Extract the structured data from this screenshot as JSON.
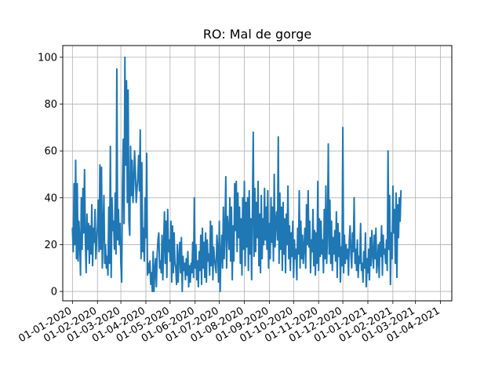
{
  "chart_data": {
    "type": "line",
    "title": "RO: Mal de gorge",
    "xlabel": "",
    "ylabel": "",
    "ylim": [
      -4,
      105
    ],
    "yticks": [
      0,
      20,
      40,
      60,
      80,
      100
    ],
    "xlim": [
      "2019-12-20",
      "2021-04-15"
    ],
    "xticks": [
      "2020-01-01",
      "2020-02-01",
      "2020-03-01",
      "2020-04-01",
      "2020-05-01",
      "2020-06-01",
      "2020-07-01",
      "2020-08-01",
      "2020-09-01",
      "2020-10-01",
      "2020-11-01",
      "2020-12-01",
      "2021-01-01",
      "2021-02-01",
      "2021-03-01",
      "2021-04-01"
    ],
    "xtick_labels": [
      "01-01-2020",
      "01-02-2020",
      "01-03-2020",
      "01-04-2020",
      "01-05-2020",
      "01-06-2020",
      "01-07-2020",
      "01-08-2020",
      "01-09-2020",
      "01-10-2020",
      "01-11-2020",
      "01-12-2020",
      "01-01-2021",
      "01-02-2021",
      "01-03-2021",
      "01-04-2021"
    ],
    "grid": true,
    "line_color": "#1f77b4",
    "series": [
      {
        "name": "",
        "x_start": "2020-01-01",
        "x_step_days": 1,
        "values": [
          27,
          17,
          46,
          20,
          56,
          14,
          46,
          13,
          30,
          22,
          7,
          40,
          18,
          44,
          25,
          52,
          22,
          8,
          33,
          18,
          29,
          12,
          28,
          16,
          37,
          11,
          27,
          21,
          35,
          14,
          21,
          28,
          39,
          17,
          54,
          18,
          53,
          10,
          27,
          41,
          12,
          20,
          10,
          15,
          7,
          36,
          12,
          62,
          6,
          40,
          26,
          30,
          18,
          42,
          16,
          95,
          22,
          35,
          20,
          29,
          12,
          4,
          46,
          65,
          29,
          100,
          54,
          90,
          38,
          86,
          30,
          24,
          62,
          41,
          56,
          38,
          46,
          60,
          51,
          38,
          44,
          48,
          58,
          43,
          69,
          14,
          55,
          17,
          27,
          13,
          40,
          23,
          59,
          7,
          12,
          8,
          13,
          3,
          8,
          0,
          17,
          0,
          9,
          14,
          2,
          16,
          22,
          25,
          10,
          13,
          8,
          24,
          5,
          20,
          34,
          12,
          30,
          6,
          35,
          17,
          22,
          13,
          30,
          4,
          28,
          8,
          25,
          12,
          10,
          3,
          20,
          4,
          14,
          21,
          8,
          23,
          0,
          15,
          9,
          12,
          5,
          14,
          7,
          17,
          2,
          11,
          4,
          12,
          8,
          21,
          6,
          40,
          10,
          20,
          5,
          13,
          2,
          17,
          9,
          24,
          3,
          27,
          10,
          21,
          6,
          25,
          4,
          22,
          13,
          16,
          7,
          30,
          11,
          28,
          5,
          19,
          14,
          11,
          8,
          24,
          18,
          4,
          30,
          0,
          16,
          24,
          10,
          36,
          14,
          26,
          49,
          10,
          32,
          27,
          18,
          40,
          13,
          36,
          5,
          28,
          13,
          46,
          26,
          47,
          17,
          42,
          23,
          36,
          12,
          31,
          7,
          40,
          18,
          47,
          11,
          38,
          19,
          40,
          9,
          43,
          16,
          31,
          5,
          35,
          68,
          15,
          44,
          17,
          38,
          23,
          47,
          11,
          33,
          8,
          41,
          14,
          31,
          20,
          44,
          22,
          36,
          18,
          43,
          10,
          29,
          14,
          40,
          21,
          36,
          13,
          50,
          19,
          30,
          34,
          22,
          66,
          12,
          42,
          18,
          36,
          9,
          38,
          16,
          31,
          8,
          33,
          20,
          45,
          14,
          28,
          9,
          25,
          15,
          30,
          6,
          22,
          14,
          18,
          5,
          27,
          16,
          43,
          10,
          30,
          14,
          24,
          12,
          19,
          27,
          10,
          37,
          20,
          43,
          19,
          30,
          8,
          22,
          17,
          35,
          11,
          26,
          7,
          25,
          12,
          47,
          9,
          31,
          15,
          30,
          16,
          22,
          8,
          35,
          14,
          45,
          12,
          25,
          63,
          16,
          39,
          12,
          30,
          9,
          23,
          16,
          26,
          13,
          34,
          6,
          29,
          15,
          25,
          4,
          19,
          11,
          70,
          8,
          24,
          12,
          20,
          14,
          18,
          7,
          22,
          28,
          16,
          10,
          25,
          17,
          40,
          12,
          18,
          9,
          22,
          6,
          15,
          12,
          29,
          9,
          12,
          4,
          17,
          10,
          25,
          2,
          14,
          8,
          18,
          5,
          23,
          11,
          26,
          16,
          10,
          24,
          14,
          27,
          8,
          13,
          20,
          6,
          21,
          15,
          28,
          7,
          24,
          16,
          18,
          12,
          22,
          9,
          60,
          18,
          41,
          3,
          25,
          14,
          45,
          25,
          35,
          12,
          42,
          6,
          37,
          23,
          40,
          30,
          43
        ]
      }
    ]
  }
}
